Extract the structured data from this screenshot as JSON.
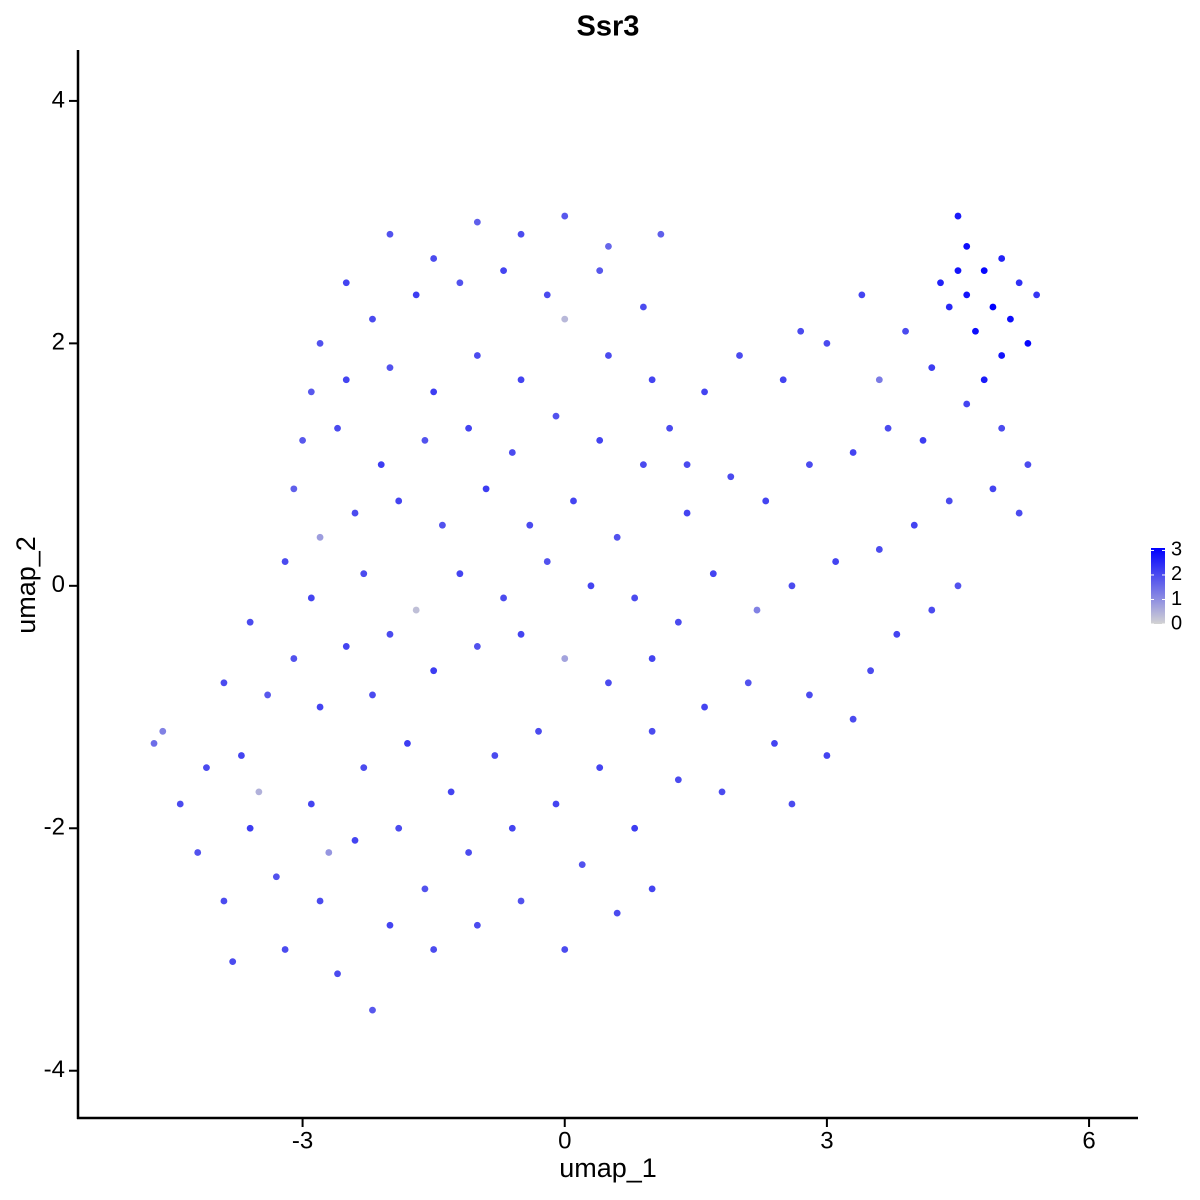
{
  "chart_data": {
    "type": "scatter",
    "title": "Ssr3",
    "x_label": "umap_1",
    "y_label": "umap_2",
    "xlim": [
      -5.57,
      6.56
    ],
    "ylim": [
      -4.39,
      4.42
    ],
    "xticks": [
      -3,
      0,
      3,
      6
    ],
    "yticks": [
      -4,
      -2,
      0,
      2,
      4
    ],
    "grid": false,
    "color_low": "lightgrey",
    "color_high": "blue",
    "color_lim": [
      0,
      3.1
    ],
    "color_ticks": [
      0,
      1,
      2,
      3
    ],
    "legend_position": "right",
    "x": [
      -2.0,
      -1.5,
      -1,
      -0.5,
      0,
      0.5,
      1.1,
      -2.5,
      -2.8,
      -2.2,
      -1.7,
      -1.2,
      -0.7,
      -0.2,
      0.4,
      0.9,
      -2.9,
      -2.5,
      -2,
      -1.5,
      -1,
      -0.5,
      0,
      0.5,
      1.0,
      -3.0,
      -2.6,
      -2.1,
      -1.6,
      -1.1,
      -0.6,
      -0.1,
      0.4,
      0.9,
      -3.1,
      -2.8,
      -2.4,
      -1.9,
      -1.4,
      -0.9,
      -0.4,
      0.1,
      0.6,
      -3.2,
      -2.9,
      -2.3,
      -1.7,
      -1.2,
      -0.7,
      -0.2,
      0.3,
      0.8,
      -3.6,
      -3.1,
      -2.5,
      -2,
      -1.5,
      -1,
      -0.5,
      0,
      0.5,
      1.0,
      -3.9,
      -3.4,
      -2.8,
      -2.2,
      -4.4,
      -4.1,
      -4.2,
      -3.9,
      -3.6,
      -3.7,
      -3.3,
      -3.2,
      -2.9,
      -2.8,
      -2.6,
      -2.4,
      -2.3,
      -2.2,
      -2.0,
      -1.9,
      -1.8,
      -1.6,
      -1.5,
      -1.3,
      -1.1,
      -1.0,
      -0.8,
      -0.6,
      -0.5,
      -0.3,
      -0.1,
      0,
      0.2,
      0.4,
      0.6,
      0.8,
      1.0,
      1.0,
      -4.7,
      -4.6,
      -3.5,
      -3.8,
      -2.7,
      1.3,
      1.6,
      1.8,
      2.1,
      2.4,
      2.6,
      2.8,
      3.0,
      3.3,
      3.5,
      3.8,
      4.2,
      4.5,
      1.3,
      1.7,
      2.2,
      2.6,
      3.1,
      3.6,
      4.0,
      4.4,
      4.9,
      5.2,
      1.4,
      1.9,
      2.3,
      2.8,
      3.3,
      3.7,
      4.1,
      4.6,
      5.0,
      1.2,
      1.6,
      2.0,
      2.5,
      3.0,
      3.4,
      3.9,
      4.3,
      1.4,
      2.7,
      3.6,
      4.2,
      5.3,
      4.5,
      4.6,
      4.8,
      4.5,
      4.9,
      5.1,
      5.3,
      5.0,
      4.7,
      4.6,
      5.2,
      4.4,
      5.0,
      4.8,
      5.4
    ],
    "values": [
      2.9,
      2.7,
      3.0,
      2.9,
      3.05,
      2.8,
      2.9,
      2.5,
      2.0,
      2.2,
      2.4,
      2.5,
      2.6,
      2.4,
      2.6,
      2.3,
      1.6,
      1.7,
      1.8,
      1.6,
      1.9,
      1.7,
      2.2,
      1.9,
      1.7,
      1.2,
      1.3,
      1.0,
      1.2,
      1.3,
      1.1,
      1.4,
      1.2,
      1.0,
      0.8,
      0.4,
      0.6,
      0.7,
      0.5,
      0.8,
      0.5,
      0.7,
      0.4,
      0.2,
      -0.1,
      0.1,
      -0.2,
      0.1,
      -0.1,
      0.2,
      0,
      -0.1,
      -0.3,
      -0.6,
      -0.5,
      -0.4,
      -0.7,
      -0.5,
      -0.4,
      -0.6,
      -0.8,
      -0.6,
      -0.8,
      -0.9,
      -1.0,
      -0.9,
      -1.8,
      -1.5,
      -2.2,
      -2.6,
      -2.0,
      -1.4,
      -2.4,
      -3.0,
      -1.8,
      -2.6,
      -3.2,
      -2.1,
      -1.5,
      -3.5,
      -2.8,
      -2.0,
      -1.3,
      -2.5,
      -3.0,
      -1.7,
      -2.2,
      -2.8,
      -1.4,
      -2.0,
      -2.6,
      -1.2,
      -1.8,
      -3.0,
      -2.3,
      -1.5,
      -2.7,
      -2.0,
      -1.2,
      -2.5,
      -1.3,
      -1.2,
      -1.7,
      -3.1,
      -2.2,
      -1.6,
      -1.0,
      -1.7,
      -0.8,
      -1.3,
      -1.8,
      -0.9,
      -1.4,
      -1.1,
      -0.7,
      -0.4,
      -0.2,
      0.0,
      -0.3,
      0.1,
      -0.2,
      0.0,
      0.2,
      0.3,
      0.5,
      0.7,
      0.8,
      0.6,
      0.6,
      0.9,
      0.7,
      1.0,
      1.1,
      1.3,
      1.2,
      1.5,
      1.3,
      1.3,
      1.6,
      1.9,
      1.7,
      2.0,
      2.4,
      2.1,
      2.5,
      1.0,
      2.1,
      1.7,
      1.8,
      1.0,
      3.05,
      2.8,
      2.6,
      2.6,
      2.3,
      2.2,
      2.0,
      1.9,
      2.1,
      2.4,
      2.5,
      2.3,
      2.7,
      1.7,
      2.4
    ],
    "color_values": [
      1.9,
      2,
      1.7,
      2,
      1.8,
      1.6,
      1.7,
      2.1,
      1.9,
      2,
      2.2,
      1.9,
      2.1,
      2,
      1.8,
      2,
      1.8,
      2.1,
      1.9,
      2.2,
      2,
      2.1,
      0.4,
      2,
      2.1,
      1.8,
      2,
      2.2,
      1.9,
      2.1,
      2,
      1.9,
      2.1,
      2,
      1.7,
      0.8,
      2,
      2.1,
      1.9,
      2.2,
      2,
      2.1,
      1.9,
      2,
      2.1,
      2,
      0.3,
      2.1,
      2,
      1.9,
      2.1,
      2,
      2,
      1.9,
      2.1,
      2,
      2.2,
      1.9,
      2.1,
      0.7,
      2,
      2.1,
      2,
      1.8,
      2.1,
      2,
      2,
      2,
      1.9,
      2,
      2.2,
      2.1,
      1.9,
      2,
      2.1,
      2,
      2,
      2.1,
      2,
      1.8,
      2.1,
      2,
      2.2,
      1.9,
      2,
      2.1,
      2,
      2,
      2,
      2.1,
      1.9,
      2,
      2.1,
      2,
      1.9,
      2.1,
      2,
      2.2,
      2,
      2.1,
      1.5,
      1.2,
      0.5,
      2,
      0.9,
      2,
      2.1,
      2,
      1.9,
      2.1,
      2,
      2,
      2.1,
      2,
      2,
      2.1,
      2,
      1.9,
      2,
      2.1,
      1.2,
      2,
      2.1,
      2,
      2.1,
      2,
      2.1,
      2,
      2.1,
      2,
      2.1,
      2,
      2.1,
      2,
      2.2,
      2.1,
      2,
      2,
      2.1,
      2,
      2.1,
      2,
      2.1,
      2,
      2.6,
      2,
      2,
      1.3,
      2.2,
      2,
      2.7,
      2.9,
      3,
      2.8,
      3.1,
      2.9,
      3,
      2.8,
      2.9,
      2.8,
      2.4,
      2.5,
      2.6,
      2.7,
      2.3
    ]
  }
}
